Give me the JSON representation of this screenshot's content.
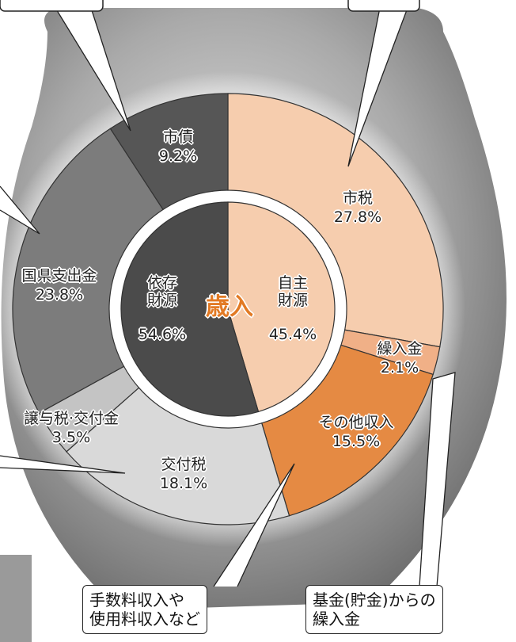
{
  "chart_data": {
    "type": "pie",
    "title": "歳入",
    "rings": [
      {
        "categories": [
          "自主財源",
          "依存財源"
        ],
        "values": [
          45.4,
          54.6
        ],
        "value_labels": [
          "45.4%",
          "54.6%"
        ],
        "colors": [
          "#f6cdae",
          "#4b4b4b"
        ]
      },
      {
        "categories": [
          "市税",
          "繰入金",
          "その他収入",
          "交付税",
          "譲与税·交付金",
          "国県支出金",
          "市債"
        ],
        "values": [
          27.8,
          2.1,
          15.5,
          18.1,
          3.5,
          23.8,
          9.2
        ],
        "value_labels": [
          "27.8%",
          "2.1%",
          "15.5%",
          "18.1%",
          "3.5%",
          "23.8%",
          "9.2%"
        ],
        "colors": [
          "#f6cdae",
          "#f0b087",
          "#e58a43",
          "#d9d9d9",
          "#c4c4c4",
          "#7c7c7c",
          "#565656"
        ]
      }
    ],
    "annotations": [
      "手数料収入や\n使用料収入など",
      "基金(貯金)からの\n繰入金"
    ]
  }
}
